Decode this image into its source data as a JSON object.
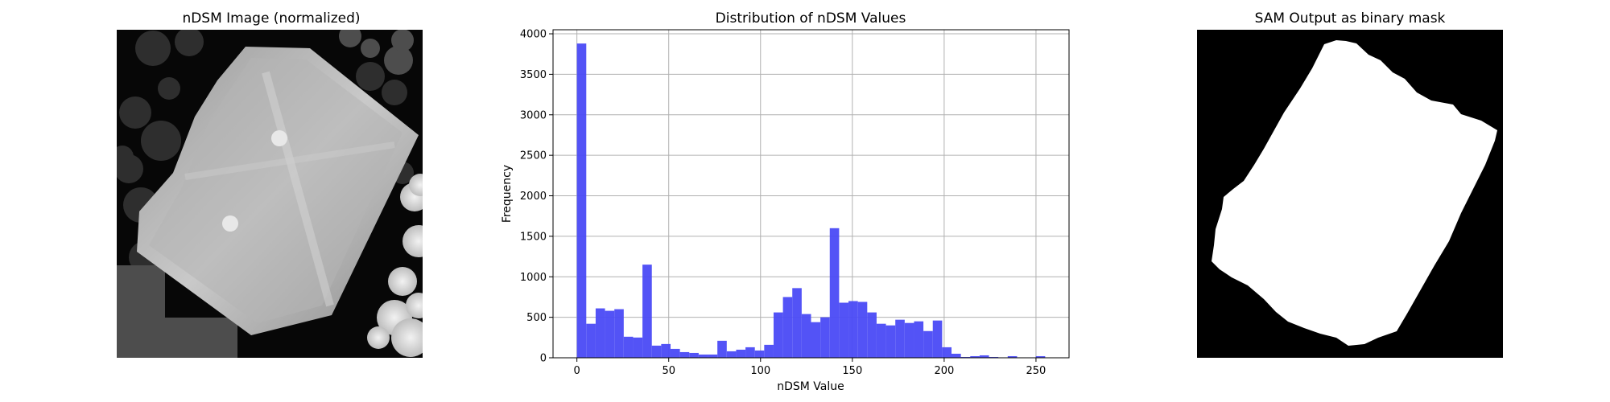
{
  "panels": {
    "left_title": "nDSM Image (normalized)",
    "right_title": "SAM Output as binary mask"
  },
  "colors": {
    "bar": "#4a4af5",
    "grid": "#b0b0b0",
    "background": "#ffffff",
    "mask_background": "#000000",
    "mask_foreground": "#ffffff"
  },
  "chart_data": {
    "type": "bar",
    "title": "Distribution of nDSM Values",
    "xlabel": "nDSM Value",
    "ylabel": "Frequency",
    "xlim": [
      -13,
      268
    ],
    "ylim": [
      0,
      4050
    ],
    "grid": true,
    "bin_width": 5.1,
    "x_ticks": [
      0,
      50,
      100,
      150,
      200,
      250
    ],
    "y_ticks": [
      0,
      500,
      1000,
      1500,
      2000,
      2500,
      3000,
      3500,
      4000
    ],
    "bin_edges_start": [
      0,
      5.1,
      10.2,
      15.3,
      20.4,
      25.5,
      30.6,
      35.7,
      40.8,
      45.9,
      51.0,
      56.1,
      61.2,
      66.3,
      71.4,
      76.5,
      81.6,
      86.7,
      91.8,
      96.9,
      102.0,
      107.1,
      112.2,
      117.3,
      122.4,
      127.5,
      132.6,
      137.7,
      142.8,
      147.9,
      153.0,
      158.1,
      163.2,
      168.3,
      173.4,
      178.5,
      183.6,
      188.7,
      193.8,
      198.9,
      204.0,
      209.1,
      214.2,
      219.3,
      224.4,
      229.5,
      234.6,
      239.7,
      244.8,
      249.9
    ],
    "values": [
      3880,
      420,
      610,
      580,
      600,
      260,
      250,
      1150,
      150,
      170,
      110,
      70,
      60,
      40,
      40,
      210,
      80,
      100,
      130,
      90,
      160,
      560,
      750,
      860,
      540,
      440,
      500,
      1600,
      680,
      700,
      690,
      560,
      420,
      400,
      470,
      430,
      450,
      330,
      460,
      130,
      50,
      10,
      20,
      30,
      10,
      5,
      20,
      5,
      5,
      20
    ]
  }
}
